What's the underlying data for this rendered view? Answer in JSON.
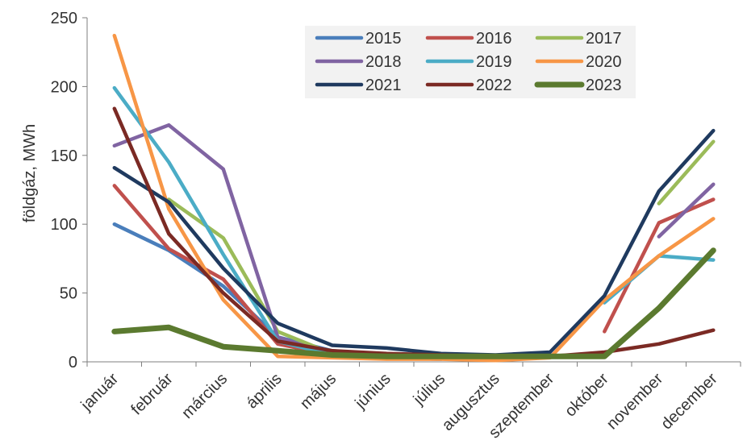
{
  "chart_data": {
    "type": "line",
    "title": "",
    "ylabel": "földgáz, MWh",
    "xlabel": "",
    "ylim": [
      0,
      250
    ],
    "yticks": [
      0,
      50,
      100,
      150,
      200,
      250
    ],
    "grid": false,
    "legend_position": "top-center",
    "categories": [
      "január",
      "február",
      "március",
      "április",
      "május",
      "június",
      "július",
      "augusztus",
      "szeptember",
      "október",
      "november",
      "december"
    ],
    "series": [
      {
        "name": "2015",
        "color": "#4a7ebb",
        "values": [
          100,
          81,
          55,
          18,
          8,
          5,
          3,
          null,
          null,
          null,
          null,
          null
        ]
      },
      {
        "name": "2016",
        "color": "#c0504d",
        "values": [
          128,
          82,
          60,
          13,
          5,
          3,
          2,
          null,
          null,
          22,
          101,
          118
        ]
      },
      {
        "name": "2017",
        "color": "#9bbb59",
        "values": [
          null,
          118,
          90,
          22,
          6,
          null,
          null,
          null,
          null,
          null,
          115,
          160
        ]
      },
      {
        "name": "2018",
        "color": "#8064a2",
        "values": [
          157,
          172,
          140,
          18,
          5,
          3,
          2,
          null,
          null,
          null,
          91,
          129
        ]
      },
      {
        "name": "2019",
        "color": "#4bacc6",
        "values": [
          199,
          145,
          78,
          15,
          5,
          3,
          2,
          null,
          null,
          43,
          77,
          74
        ]
      },
      {
        "name": "2020",
        "color": "#f79646",
        "values": [
          237,
          111,
          45,
          4,
          3,
          2,
          2,
          1,
          3,
          45,
          77,
          104
        ]
      },
      {
        "name": "2021",
        "color": "#1f3a5f",
        "values": [
          141,
          116,
          68,
          28,
          12,
          10,
          6,
          5,
          7,
          48,
          124,
          168
        ]
      },
      {
        "name": "2022",
        "color": "#7b2a24",
        "values": [
          184,
          93,
          50,
          15,
          8,
          6,
          5,
          4,
          4,
          7,
          13,
          23
        ]
      },
      {
        "name": "2023",
        "color": "#5b7a2f",
        "values": [
          22,
          25,
          11,
          8,
          5,
          4,
          4,
          4,
          4,
          4,
          39,
          81
        ]
      }
    ]
  }
}
